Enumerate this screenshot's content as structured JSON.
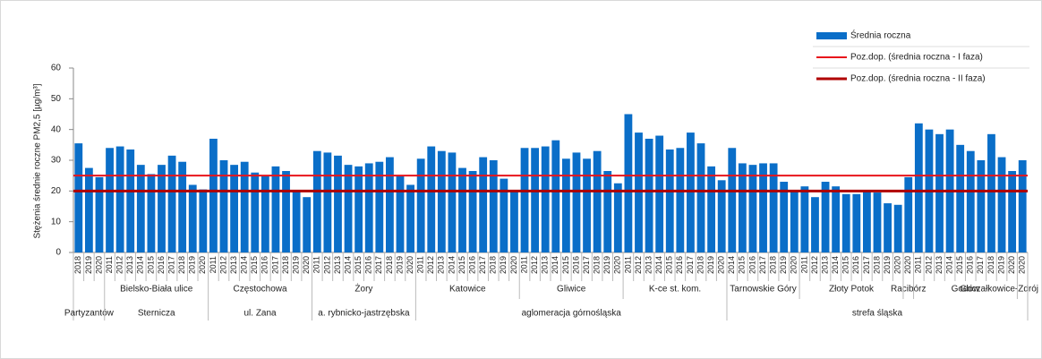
{
  "chart_data": {
    "type": "bar",
    "y_label": "Stężenia średnie roczne PM2,5 [µg/m³]",
    "ylim": [
      0,
      60
    ],
    "yticks": [
      0,
      10,
      20,
      30,
      40,
      50,
      60
    ],
    "series": [
      {
        "name": "Średnia roczna",
        "color": "#0a6ec8"
      }
    ],
    "ref_lines": [
      {
        "name": "Poz.dop. (średnia roczna - I faza)",
        "color": "#e8141b",
        "value": 25,
        "width": 2
      },
      {
        "name": "Poz.dop. (średnia roczna - II faza)",
        "color": "#b00000",
        "value": 20,
        "width": 3
      }
    ],
    "legend": "top-right",
    "sections": [
      {
        "label": "Partyzantów",
        "groups": [
          {
            "years": [
              2018,
              2019,
              2020
            ],
            "values": [
              35.5,
              27.5,
              24.5
            ]
          }
        ]
      },
      {
        "label": "Sternicza",
        "groups": [
          {
            "label": "Bielsko-Biała ulice",
            "years": [
              2011,
              2012,
              2013,
              2014,
              2015,
              2016,
              2017,
              2018,
              2019,
              2020
            ],
            "values": [
              34,
              34.5,
              33.5,
              28.5,
              25.5,
              28.5,
              31.5,
              29.5,
              22,
              20.5
            ]
          }
        ]
      },
      {
        "label": "ul. Zana",
        "groups": [
          {
            "label": "Częstochowa",
            "years": [
              2011,
              2012,
              2013,
              2014,
              2015,
              2016,
              2017,
              2018,
              2019,
              2020
            ],
            "values": [
              37,
              30,
              28.5,
              29.5,
              26,
              25,
              28,
              26.5,
              20,
              18
            ]
          }
        ]
      },
      {
        "label": "a. rybnicko-jastrzębska",
        "groups": [
          {
            "label": "Żory",
            "years": [
              2011,
              2012,
              2013,
              2014,
              2015,
              2016,
              2017,
              2018,
              2019,
              2020
            ],
            "values": [
              33,
              32.5,
              31.5,
              28.5,
              28,
              29,
              29.5,
              31,
              25,
              22
            ]
          }
        ]
      },
      {
        "label": "aglomeracja górnośląska",
        "groups": [
          {
            "label": "Katowice",
            "years": [
              2011,
              2012,
              2013,
              2014,
              2015,
              2016,
              2017,
              2018,
              2019,
              2020
            ],
            "values": [
              30.5,
              34.5,
              33,
              32.5,
              27.5,
              26.5,
              31,
              30,
              24,
              20
            ]
          },
          {
            "label": "Gliwice",
            "years": [
              2011,
              2012,
              2013,
              2014,
              2015,
              2016,
              2017,
              2018,
              2019,
              2020
            ],
            "values": [
              34,
              34,
              34.5,
              36.5,
              30.5,
              32.5,
              30.5,
              33,
              26.5,
              22.5
            ]
          },
          {
            "label": "K-ce st. kom.",
            "years": [
              2011,
              2012,
              2013,
              2014,
              2015,
              2016,
              2017,
              2018,
              2019,
              2020
            ],
            "values": [
              45,
              39,
              37,
              38,
              33.5,
              34,
              39,
              35.5,
              28,
              23.5
            ]
          }
        ]
      },
      {
        "label": "strefa śląska",
        "groups": [
          {
            "label": "Tarnowskie Góry",
            "years": [
              2014,
              2015,
              2016,
              2017,
              2018,
              2019,
              2020
            ],
            "values": [
              34,
              29,
              28.5,
              29,
              29,
              23,
              20
            ]
          },
          {
            "label": "Złoty Potok",
            "years": [
              2011,
              2012,
              2013,
              2014,
              2015,
              2016,
              2017,
              2018,
              2019,
              2020
            ],
            "values": [
              21.5,
              18,
              23,
              21.5,
              19,
              19,
              20,
              19.5,
              16,
              15.5
            ]
          },
          {
            "label": "Racibórz",
            "years": [
              2020
            ],
            "values": [
              24.5
            ]
          },
          {
            "label": "Godów",
            "years": [
              2011,
              2012,
              2013,
              2014,
              2015,
              2016,
              2017,
              2018,
              2019,
              2020
            ],
            "values": [
              42,
              40,
              38.5,
              40,
              35,
              33,
              30,
              38.5,
              31,
              26.5
            ]
          },
          {
            "label": "Goczałkowice-Zdrój",
            "years": [
              2020
            ],
            "values": [
              30
            ]
          }
        ]
      }
    ]
  }
}
